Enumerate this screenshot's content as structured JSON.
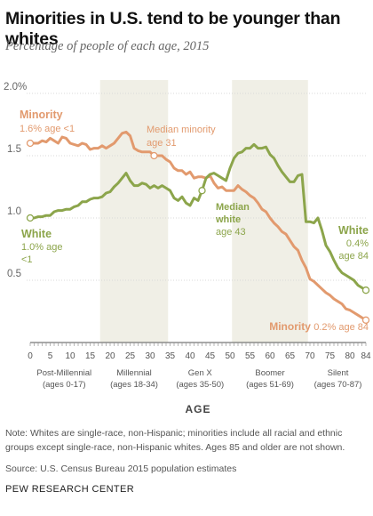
{
  "title": "Minorities in U.S. tend to be younger than whites",
  "subtitle": "Percentage of people of each age, 2015",
  "note": "Note: Whites are single-race, non-Hispanic; minorities include all racial and ethnic groups except single-race, non-Hispanic whites. Ages 85 and older are not shown.",
  "source": "Source: U.S. Census Bureau 2015 population estimates",
  "organization": "PEW RESEARCH CENTER",
  "chart_data": {
    "type": "line",
    "xlabel": "AGE",
    "ylabel": "",
    "xlim": [
      0,
      84
    ],
    "ylim": [
      0,
      2.0
    ],
    "grid": true,
    "y_ticks": [
      "2.0%",
      "1.5",
      "1.0",
      "0.5"
    ],
    "x_ticks": [
      "0",
      "5",
      "10",
      "15",
      "20",
      "25",
      "30",
      "35",
      "40",
      "45",
      "50",
      "55",
      "60",
      "65",
      "70",
      "75",
      "80",
      "84"
    ],
    "x": [
      0,
      1,
      2,
      3,
      4,
      5,
      6,
      7,
      8,
      9,
      10,
      11,
      12,
      13,
      14,
      15,
      16,
      17,
      18,
      19,
      20,
      21,
      22,
      23,
      24,
      25,
      26,
      27,
      28,
      29,
      30,
      31,
      32,
      33,
      34,
      35,
      36,
      37,
      38,
      39,
      40,
      41,
      42,
      43,
      44,
      45,
      46,
      47,
      48,
      49,
      50,
      51,
      52,
      53,
      54,
      55,
      56,
      57,
      58,
      59,
      60,
      61,
      62,
      63,
      64,
      65,
      66,
      67,
      68,
      69,
      70,
      71,
      72,
      73,
      74,
      75,
      76,
      77,
      78,
      79,
      80,
      81,
      82,
      83,
      84
    ],
    "series": [
      {
        "name": "Minority",
        "color": "#e29a6e",
        "values": [
          1.6,
          1.6,
          1.6,
          1.62,
          1.61,
          1.64,
          1.62,
          1.6,
          1.65,
          1.64,
          1.6,
          1.59,
          1.58,
          1.6,
          1.59,
          1.55,
          1.56,
          1.56,
          1.58,
          1.56,
          1.58,
          1.6,
          1.64,
          1.68,
          1.69,
          1.66,
          1.56,
          1.54,
          1.53,
          1.53,
          1.53,
          1.5,
          1.5,
          1.5,
          1.47,
          1.45,
          1.4,
          1.38,
          1.38,
          1.35,
          1.37,
          1.32,
          1.33,
          1.33,
          1.32,
          1.34,
          1.28,
          1.24,
          1.25,
          1.22,
          1.22,
          1.22,
          1.26,
          1.23,
          1.21,
          1.18,
          1.16,
          1.12,
          1.07,
          1.05,
          1.0,
          0.96,
          0.93,
          0.89,
          0.87,
          0.82,
          0.77,
          0.74,
          0.66,
          0.6,
          0.51,
          0.49,
          0.46,
          0.43,
          0.4,
          0.38,
          0.35,
          0.33,
          0.31,
          0.27,
          0.26,
          0.24,
          0.22,
          0.2,
          0.18
        ]
      },
      {
        "name": "White",
        "color": "#8ca54b",
        "values": [
          1.0,
          1.0,
          1.01,
          1.01,
          1.02,
          1.02,
          1.05,
          1.06,
          1.06,
          1.07,
          1.07,
          1.09,
          1.1,
          1.13,
          1.13,
          1.15,
          1.16,
          1.16,
          1.17,
          1.2,
          1.21,
          1.25,
          1.28,
          1.32,
          1.36,
          1.3,
          1.26,
          1.26,
          1.28,
          1.27,
          1.24,
          1.26,
          1.24,
          1.26,
          1.24,
          1.22,
          1.16,
          1.14,
          1.17,
          1.12,
          1.1,
          1.16,
          1.14,
          1.22,
          1.32,
          1.35,
          1.36,
          1.34,
          1.32,
          1.3,
          1.4,
          1.48,
          1.52,
          1.53,
          1.56,
          1.56,
          1.59,
          1.56,
          1.56,
          1.57,
          1.51,
          1.48,
          1.42,
          1.37,
          1.33,
          1.29,
          1.29,
          1.34,
          1.35,
          0.97,
          0.97,
          0.96,
          1.0,
          0.9,
          0.78,
          0.73,
          0.66,
          0.6,
          0.56,
          0.54,
          0.52,
          0.5,
          0.46,
          0.44,
          0.42
        ]
      }
    ],
    "generations": [
      {
        "name": "Post-Millennial",
        "ages": "(ages 0-17)",
        "from": 0,
        "to": 17,
        "shaded": false
      },
      {
        "name": "Millennial",
        "ages": "(ages 18-34)",
        "from": 18,
        "to": 34,
        "shaded": true
      },
      {
        "name": "Gen X",
        "ages": "(ages 35-50)",
        "from": 35,
        "to": 50,
        "shaded": false
      },
      {
        "name": "Boomer",
        "ages": "(ages 51-69)",
        "from": 51,
        "to": 69,
        "shaded": true
      },
      {
        "name": "Silent",
        "ages": "(ages 70-87)",
        "from": 70,
        "to": 84,
        "shaded": false
      }
    ],
    "annotations": {
      "minority_start": {
        "title": "Minority",
        "sub": "1.6% age <1",
        "x": 0,
        "y": 1.6
      },
      "median_minority": {
        "line1": "Median minority",
        "line2": "age 31",
        "x": 31,
        "y": 1.5
      },
      "median_white": {
        "line1": "Median",
        "line2": "white",
        "line3": "age 43",
        "x": 43,
        "y": 1.22
      },
      "white_start": {
        "title": "White",
        "sub1": "1.0% age",
        "sub2": "<1",
        "x": 0,
        "y": 1.0
      },
      "white_end": {
        "title": "White",
        "sub1": "0.4%",
        "sub2": "age 84",
        "x": 84,
        "y": 0.42
      },
      "minority_end": {
        "title": "Minority",
        "sub": "0.2% age 84",
        "x": 84,
        "y": 0.18
      }
    },
    "shade_color": "#f0efe6",
    "grid_color": "#d8d8d8",
    "axis_color": "#555555"
  }
}
